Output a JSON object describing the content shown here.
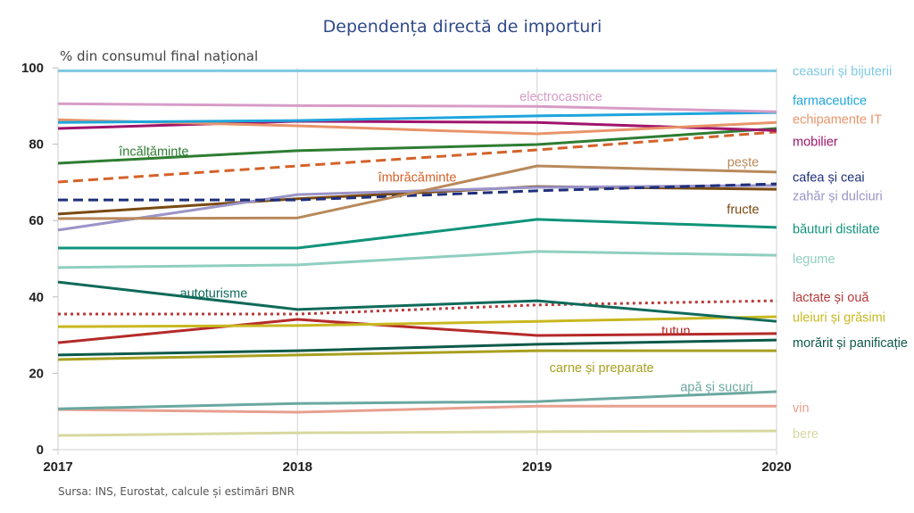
{
  "chart_data": {
    "type": "line",
    "title": "Dependența directă de importuri",
    "ylabel": "% din consumul final național",
    "xlabel": "",
    "x": [
      "2017",
      "2018",
      "2019",
      "2020"
    ],
    "ylim": [
      0,
      100
    ],
    "yticks": [
      "0",
      "20",
      "40",
      "60",
      "80",
      "100"
    ],
    "grid": "vertical",
    "legend": "right (end-of-line labels)",
    "source": "Sursa: INS, Eurostat,  calcule și estimări  BNR",
    "series": [
      {
        "name": "ceasuri și bijuterii",
        "color": "#7ec8e3",
        "style": "solid",
        "values": [
          99.2,
          99.2,
          99.2,
          99.2
        ]
      },
      {
        "name": "electrocasnice",
        "color": "#d79cc7",
        "style": "solid",
        "values": [
          90.6,
          90.1,
          89.9,
          88.5
        ]
      },
      {
        "name": "farmaceutice",
        "color": "#1ea5dc",
        "style": "solid",
        "values": [
          85.7,
          86.2,
          87.4,
          88.3
        ]
      },
      {
        "name": "echipamente IT",
        "color": "#e8946a",
        "style": "solid",
        "values": [
          86.4,
          84.8,
          82.7,
          85.7
        ]
      },
      {
        "name": "mobilier",
        "color": "#a0146c",
        "style": "solid",
        "values": [
          84.1,
          86.0,
          85.7,
          83.6
        ]
      },
      {
        "name": "încălțăminte",
        "color": "#2e7d32",
        "style": "solid",
        "values": [
          75.0,
          78.3,
          79.9,
          84.1
        ]
      },
      {
        "name": "îmbrăcăminte",
        "color": "#d4622a",
        "style": "dashed",
        "values": [
          70.1,
          74.3,
          78.5,
          83.2
        ]
      },
      {
        "name": "pește",
        "color": "#b8895a",
        "style": "solid",
        "values": [
          60.5,
          60.7,
          74.3,
          72.7
        ]
      },
      {
        "name": "cafea și ceai",
        "color": "#1f2f7a",
        "style": "dashed",
        "values": [
          65.4,
          65.4,
          67.8,
          69.6
        ]
      },
      {
        "name": "zahăr și dulciuri",
        "color": "#9a94c8",
        "style": "solid",
        "values": [
          57.5,
          66.8,
          68.7,
          69.2
        ]
      },
      {
        "name": "fructe",
        "color": "#7a4a10",
        "style": "solid",
        "values": [
          61.7,
          65.7,
          68.9,
          68.2
        ]
      },
      {
        "name": "băuturi distilate",
        "color": "#10937a",
        "style": "solid",
        "values": [
          52.8,
          52.8,
          60.3,
          58.2
        ]
      },
      {
        "name": "legume",
        "color": "#8fcfbf",
        "style": "solid",
        "values": [
          47.7,
          48.4,
          51.9,
          50.9
        ]
      },
      {
        "name": "autoturisme",
        "color": "#0f6a5a",
        "style": "solid",
        "values": [
          43.9,
          36.7,
          39.0,
          33.6
        ]
      },
      {
        "name": "lactate și ouă",
        "color": "#b83a3a",
        "style": "dotted",
        "values": [
          35.5,
          35.5,
          37.9,
          39.0
        ]
      },
      {
        "name": "uleiuri și grăsimi",
        "color": "#c8b820",
        "style": "solid",
        "values": [
          32.2,
          32.5,
          33.6,
          34.8
        ]
      },
      {
        "name": "tutun",
        "color": "#b52a2a",
        "style": "solid",
        "values": [
          28.0,
          34.1,
          29.9,
          30.4
        ]
      },
      {
        "name": "morărit și panificație",
        "color": "#0d5a4a",
        "style": "solid",
        "values": [
          24.8,
          25.9,
          27.6,
          28.7
        ]
      },
      {
        "name": "carne și preparate",
        "color": "#a8a020",
        "style": "solid",
        "values": [
          23.6,
          24.8,
          25.9,
          25.9
        ]
      },
      {
        "name": "apă și sucuri",
        "color": "#6aa8a0",
        "style": "solid",
        "values": [
          10.7,
          12.1,
          12.6,
          15.2
        ]
      },
      {
        "name": "vin",
        "color": "#e8a090",
        "style": "solid",
        "values": [
          10.5,
          9.8,
          11.4,
          11.4
        ]
      },
      {
        "name": "bere",
        "color": "#d8d8a0",
        "style": "solid",
        "values": [
          3.7,
          4.4,
          4.7,
          4.9
        ]
      }
    ],
    "right_labels": [
      {
        "series": 0,
        "label_y_value": 99.2
      },
      {
        "series": 1,
        "label_y_value": null
      },
      {
        "series": 2,
        "label_y_value": 91.5
      },
      {
        "series": 3,
        "label_y_value": 86.6
      },
      {
        "series": 4,
        "label_y_value": 80.7
      },
      {
        "series": 8,
        "label_y_value": 71.4
      },
      {
        "series": 9,
        "label_y_value": 66.5
      },
      {
        "series": 11,
        "label_y_value": 57.8
      },
      {
        "series": 12,
        "label_y_value": 50.0
      },
      {
        "series": 14,
        "label_y_value": 40.0
      },
      {
        "series": 15,
        "label_y_value": 34.7
      },
      {
        "series": 17,
        "label_y_value": 28.0
      },
      {
        "series": 21,
        "label_y_value": 4.2
      },
      {
        "series": 20,
        "label_y_value": 11.0
      }
    ],
    "inline_labels": [
      {
        "series": 1,
        "text": "electrocasnice",
        "x_value": 2019.1,
        "y_value": 92.5
      },
      {
        "series": 5,
        "text": "încălțăminte",
        "x_value": 2017.4,
        "y_value": 78.2
      },
      {
        "series": 6,
        "text": "îmbrăcăminte",
        "x_value": 2018.5,
        "y_value": 71.4
      },
      {
        "series": 7,
        "text": "pește",
        "x_value": 2019.86,
        "y_value": 75.4
      },
      {
        "series": 10,
        "text": "fructe",
        "x_value": 2019.86,
        "y_value": 63.0
      },
      {
        "series": 13,
        "text": "autoturisme",
        "x_value": 2017.65,
        "y_value": 41.0
      },
      {
        "series": 16,
        "text": "tutun",
        "x_value": 2019.58,
        "y_value": 31.2
      },
      {
        "series": 18,
        "text": "carne și preparate",
        "x_value": 2019.27,
        "y_value": 21.5
      },
      {
        "series": 19,
        "text": "apă și sucuri",
        "x_value": 2019.75,
        "y_value": 16.5
      }
    ]
  }
}
